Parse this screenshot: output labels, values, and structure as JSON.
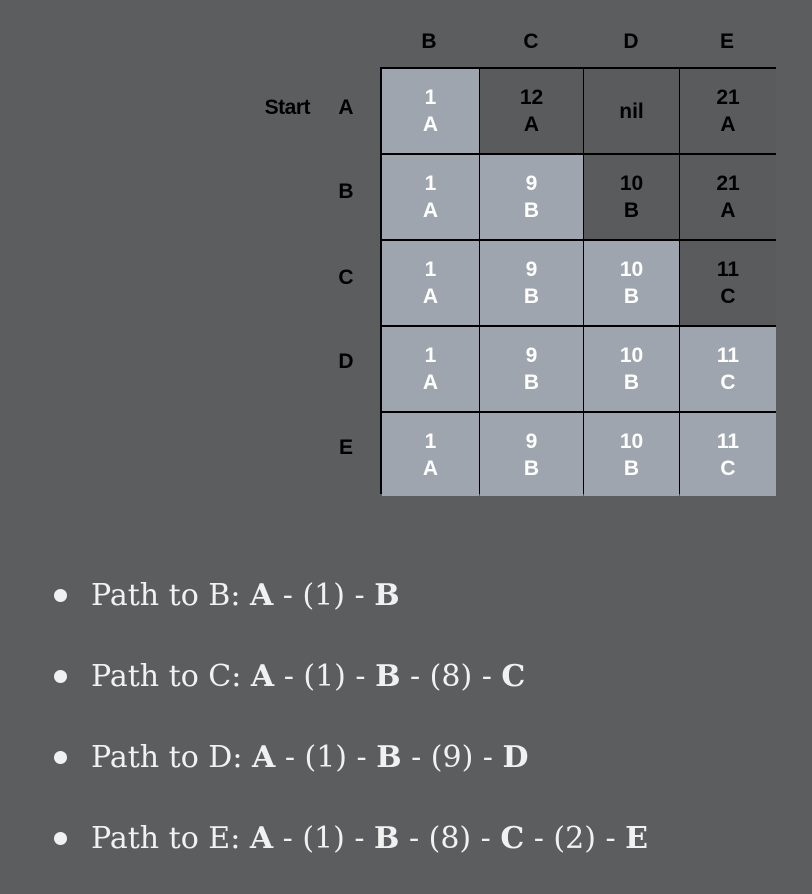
{
  "table": {
    "start_label": "Start",
    "columns": [
      "B",
      "C",
      "D",
      "E"
    ],
    "rows": [
      {
        "label": "A",
        "cells": [
          {
            "cost": "1",
            "via": "A",
            "state": "reached"
          },
          {
            "cost": "12",
            "via": "A",
            "state": "pending"
          },
          {
            "cost": "nil",
            "via": "",
            "state": "pending"
          },
          {
            "cost": "21",
            "via": "A",
            "state": "pending"
          }
        ]
      },
      {
        "label": "B",
        "cells": [
          {
            "cost": "1",
            "via": "A",
            "state": "reached"
          },
          {
            "cost": "9",
            "via": "B",
            "state": "reached"
          },
          {
            "cost": "10",
            "via": "B",
            "state": "pending"
          },
          {
            "cost": "21",
            "via": "A",
            "state": "pending"
          }
        ]
      },
      {
        "label": "C",
        "cells": [
          {
            "cost": "1",
            "via": "A",
            "state": "reached"
          },
          {
            "cost": "9",
            "via": "B",
            "state": "reached"
          },
          {
            "cost": "10",
            "via": "B",
            "state": "reached"
          },
          {
            "cost": "11",
            "via": "C",
            "state": "pending"
          }
        ]
      },
      {
        "label": "D",
        "cells": [
          {
            "cost": "1",
            "via": "A",
            "state": "reached"
          },
          {
            "cost": "9",
            "via": "B",
            "state": "reached"
          },
          {
            "cost": "10",
            "via": "B",
            "state": "reached"
          },
          {
            "cost": "11",
            "via": "C",
            "state": "reached"
          }
        ]
      },
      {
        "label": "E",
        "cells": [
          {
            "cost": "1",
            "via": "A",
            "state": "reached"
          },
          {
            "cost": "9",
            "via": "B",
            "state": "reached"
          },
          {
            "cost": "10",
            "via": "B",
            "state": "reached"
          },
          {
            "cost": "11",
            "via": "C",
            "state": "reached"
          }
        ]
      }
    ]
  },
  "paths": [
    {
      "prefix": "Path to B: ",
      "parts": [
        {
          "text": "A",
          "bold": true
        },
        {
          "text": " - (1) - ",
          "bold": false
        },
        {
          "text": "B",
          "bold": true
        }
      ]
    },
    {
      "prefix": "Path to C: ",
      "parts": [
        {
          "text": "A",
          "bold": true
        },
        {
          "text": " - (1) - ",
          "bold": false
        },
        {
          "text": "B",
          "bold": true
        },
        {
          "text": " - (8) - ",
          "bold": false
        },
        {
          "text": "C",
          "bold": true
        }
      ]
    },
    {
      "prefix": "Path to D: ",
      "parts": [
        {
          "text": "A",
          "bold": true
        },
        {
          "text": " - (1) - ",
          "bold": false
        },
        {
          "text": "B",
          "bold": true
        },
        {
          "text": " - (9) - ",
          "bold": false
        },
        {
          "text": "D",
          "bold": true
        }
      ]
    },
    {
      "prefix": "Path to E: ",
      "parts": [
        {
          "text": "A",
          "bold": true
        },
        {
          "text": " - (1) - ",
          "bold": false
        },
        {
          "text": "B",
          "bold": true
        },
        {
          "text": " - (8) - ",
          "bold": false
        },
        {
          "text": "C",
          "bold": true
        },
        {
          "text": " - (2) - ",
          "bold": false
        },
        {
          "text": "E",
          "bold": true
        }
      ]
    }
  ],
  "colors": {
    "background": "#5c5d5f",
    "reached_cell": "#9ea5ae",
    "pending_cell": "#5a5b5d"
  }
}
